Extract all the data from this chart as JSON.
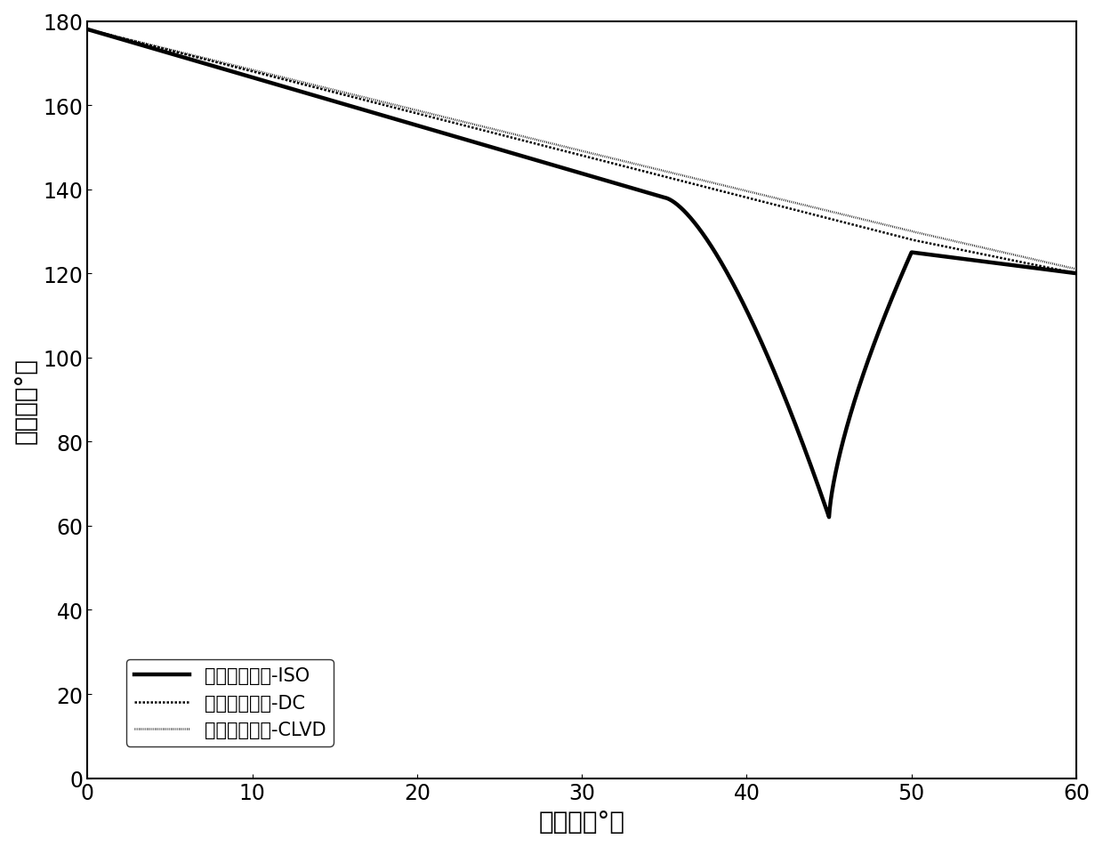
{
  "xlabel": "入射角（°）",
  "ylabel": "极化角（°）",
  "xlim": [
    0,
    60
  ],
  "ylim": [
    0,
    180
  ],
  "xticks": [
    0,
    10,
    20,
    30,
    40,
    50,
    60
  ],
  "yticks": [
    0,
    20,
    40,
    60,
    80,
    100,
    120,
    140,
    160,
    180
  ],
  "legend_entries": [
    "均匀各向同性-ISO",
    "均匀各向同性-DC",
    "均匀各向同性-CLVD"
  ],
  "background_color": "#ffffff",
  "line_color": "#000000",
  "label_fontsize": 20,
  "tick_fontsize": 17,
  "legend_fontsize": 15,
  "linewidth_iso": 3.2,
  "linewidth_dc": 1.8,
  "linewidth_clvd": 1.8
}
